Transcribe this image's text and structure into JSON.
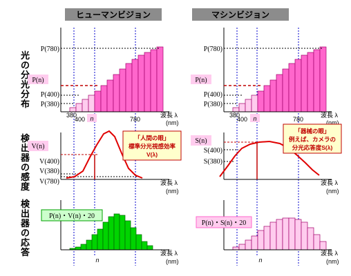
{
  "headers": {
    "human": "ヒューマンビジョン",
    "machine": "マシンビジョン"
  },
  "side_labels": {
    "row1": [
      "光",
      "の",
      "分",
      "光",
      "分",
      "布"
    ],
    "row2": [
      "検",
      "出",
      "器",
      "の",
      "感",
      "度"
    ],
    "row3": [
      "検",
      "出",
      "器",
      "の",
      "応",
      "答"
    ]
  },
  "axis": {
    "wavelength": "波長 λ",
    "unit": "(nm)"
  },
  "row1_left": {
    "y_labels": [
      "P(780)",
      "P(n)",
      "P(400)",
      "P(380)"
    ],
    "x_labels": [
      "380",
      "400",
      "n",
      "780"
    ]
  },
  "row1_right": {
    "y_labels": [
      "P(780)",
      "P(n)",
      "P(400)",
      "P(380)"
    ],
    "x_labels": [
      "380",
      "400",
      "n",
      "780"
    ]
  },
  "row2_left": {
    "y_labels": [
      "V(n)",
      "V(400)",
      "V(380)",
      "V(780)"
    ],
    "callout": [
      "「人間の眼」",
      "標準分光視感効率",
      "V(λ)"
    ]
  },
  "row2_right": {
    "y_labels": [
      "S(n)",
      "S(400)",
      "S(380)"
    ],
    "callout": [
      "「器械の眼」",
      "例えば、カメラの",
      "分光応答度S(λ)"
    ]
  },
  "row3_left": {
    "box": "P(n)・V(n)・20",
    "x_label": "n"
  },
  "row3_right": {
    "box": "P(n)・S(n)・20",
    "x_label": "n"
  },
  "colors": {
    "header_bg": "#8c8c8c",
    "bar_pink": "#ff66cc",
    "bar_pink_light": "#ffccee",
    "bar_green": "#00d400",
    "curve_red": "#e00000",
    "dash_blue": "#0000cc",
    "label_bg_pink": "#ffccee",
    "label_bg_green": "#ccffcc",
    "callout_bg": "#ffffcc"
  }
}
